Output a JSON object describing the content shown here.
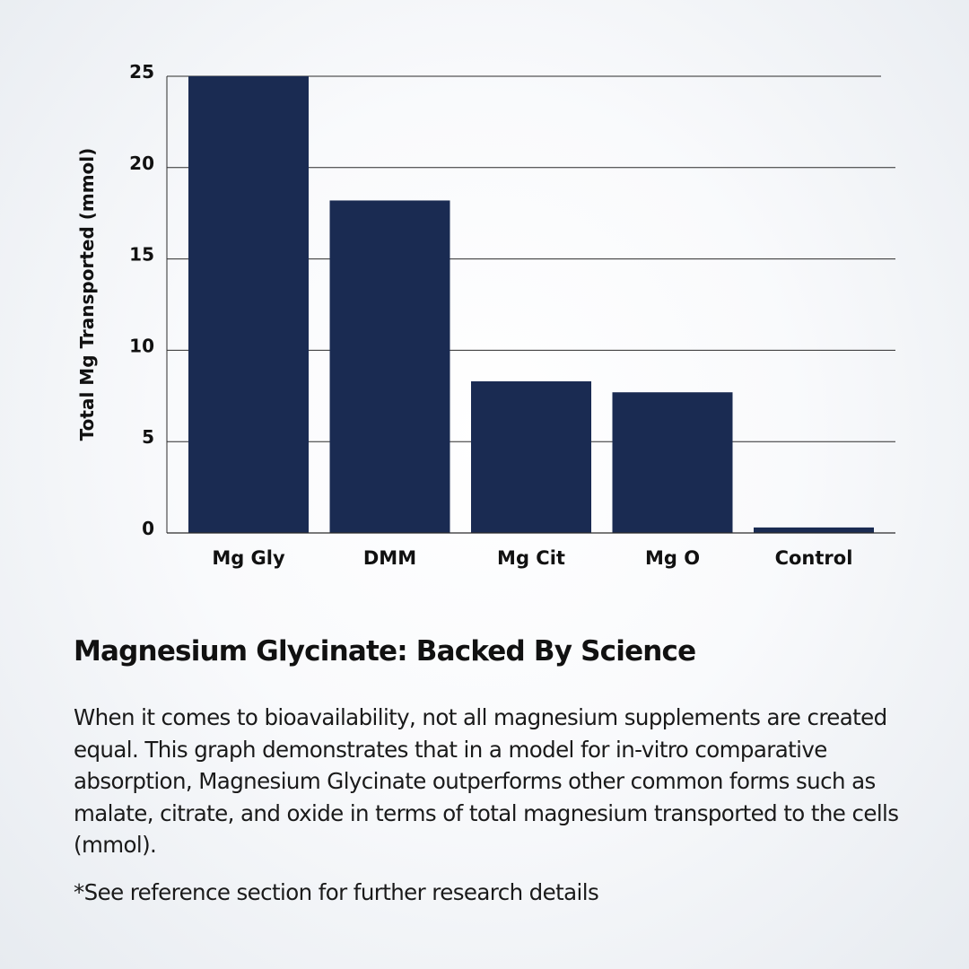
{
  "chart_data": {
    "type": "bar",
    "categories": [
      "Mg Gly",
      "DMM",
      "Mg Cit",
      "Mg O",
      "Control"
    ],
    "values": [
      25,
      18.2,
      8.3,
      7.7,
      0.3
    ],
    "ylabel": "Total Mg Transported (mmol)",
    "xlabel": "",
    "ylim": [
      0,
      25
    ],
    "yticks": [
      0,
      5,
      10,
      15,
      20,
      25
    ],
    "grid": true,
    "bar_color": "#1a2b52",
    "grid_color": "#2b2b2b"
  },
  "heading": "Magnesium Glycinate: Backed By Science",
  "body": "When it comes to bioavailability, not all magnesium supplements are created equal. This graph demonstrates that in a model for in-vitro comparative absorption, Magnesium Glycinate outperforms other common forms such as malate, citrate, and oxide in terms of total magnesium transported to the cells (mmol).",
  "footnote": "*See reference section for further research details"
}
